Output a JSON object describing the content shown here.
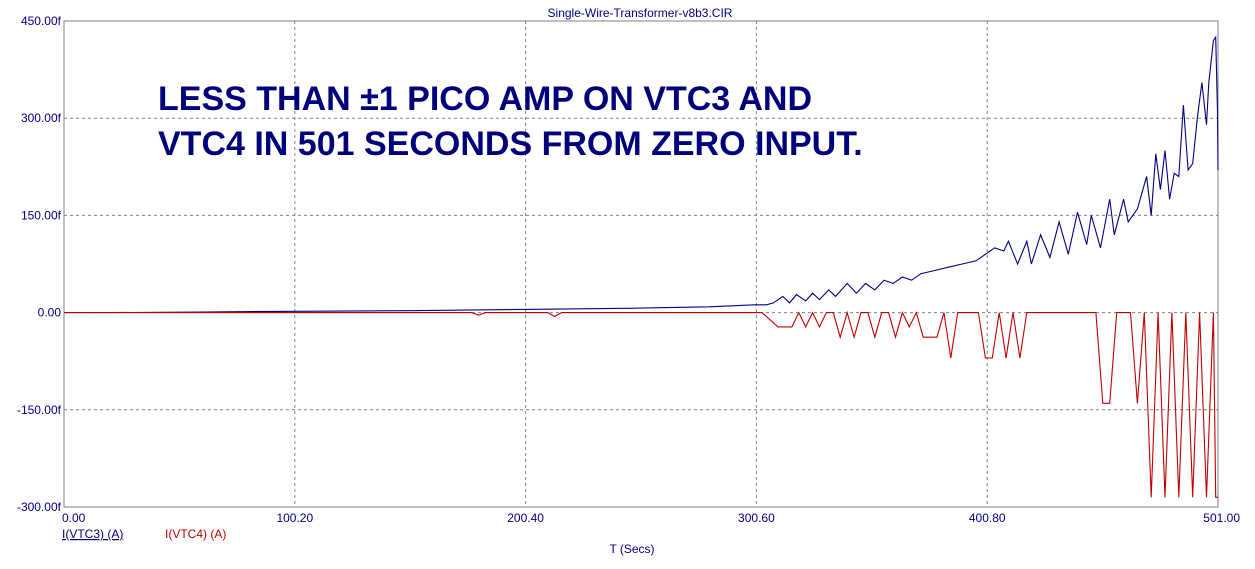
{
  "chart_data": {
    "type": "line",
    "title": "Single-Wire-Transformer-v8b3.CIR",
    "xlabel": "T (Secs)",
    "ylabel": "",
    "xlim": [
      0,
      501
    ],
    "ylim": [
      -300,
      450
    ],
    "grid": true,
    "x_ticks": [
      "0.00",
      "100.20",
      "200.40",
      "300.60",
      "400.80",
      "501.00"
    ],
    "y_ticks": [
      "450.00f",
      "300.00f",
      "150.00f",
      "0.00",
      "-150.00f",
      "-300.00f"
    ],
    "annotation": [
      "LESS THAN ±1 PICO AMP ON VTC3 AND",
      "VTC4 IN 501 SECONDS FROM ZERO INPUT."
    ],
    "colors": {
      "axis_text": "#000080",
      "grid": "#808080",
      "series1": "#000080",
      "series2": "#c00000"
    },
    "series": [
      {
        "name": "I(VTC3) (A)",
        "color": "#000080",
        "x": [
          0,
          20,
          60,
          100,
          150,
          200,
          250,
          280,
          300,
          305,
          308,
          312,
          315,
          318,
          322,
          325,
          328,
          332,
          335,
          340,
          344,
          348,
          352,
          356,
          360,
          364,
          368,
          372,
          378,
          384,
          390,
          396,
          400,
          404,
          408,
          410,
          414,
          418,
          420,
          424,
          428,
          432,
          436,
          440,
          444,
          446,
          450,
          454,
          456,
          460,
          462,
          466,
          470,
          472,
          474,
          476,
          478,
          480,
          482,
          484,
          486,
          488,
          490,
          492,
          494,
          496,
          497,
          499,
          500,
          500.8,
          501
        ],
        "y": [
          0,
          0,
          1,
          2,
          3,
          5,
          7,
          9,
          12,
          12,
          15,
          25,
          15,
          28,
          18,
          30,
          20,
          35,
          25,
          45,
          30,
          45,
          35,
          50,
          45,
          55,
          50,
          60,
          65,
          70,
          75,
          80,
          90,
          100,
          95,
          110,
          75,
          110,
          75,
          120,
          85,
          140,
          90,
          155,
          105,
          150,
          100,
          175,
          120,
          175,
          140,
          160,
          210,
          150,
          245,
          190,
          250,
          175,
          215,
          210,
          320,
          220,
          230,
          300,
          355,
          290,
          355,
          420,
          425,
          310,
          220
        ]
      },
      {
        "name": "I(VTC4) (A)",
        "color": "#c00000",
        "x": [
          0,
          150,
          177,
          180,
          183,
          210,
          213,
          216,
          300,
          303,
          310,
          313,
          316,
          319,
          322,
          325,
          328,
          331,
          334,
          337,
          340,
          343,
          346,
          349,
          352,
          355,
          358,
          361,
          364,
          367,
          370,
          373,
          376,
          379,
          382,
          385,
          388,
          391,
          394,
          397,
          400,
          403,
          406,
          409,
          412,
          415,
          418,
          421,
          424,
          427,
          430,
          433,
          436,
          439,
          442,
          445,
          448,
          451,
          454,
          457,
          460,
          463,
          466,
          469,
          472,
          475,
          478,
          481,
          484,
          487,
          490,
          493,
          496,
          499,
          500,
          501
        ],
        "y": [
          0,
          0,
          0,
          -4,
          0,
          0,
          -6,
          0,
          0,
          0,
          -22,
          -22,
          -22,
          0,
          -22,
          0,
          -22,
          0,
          0,
          -38,
          0,
          -38,
          0,
          0,
          -38,
          0,
          0,
          -38,
          0,
          -22,
          0,
          -38,
          -38,
          -38,
          0,
          -70,
          0,
          0,
          0,
          0,
          -70,
          -70,
          0,
          -70,
          0,
          -70,
          0,
          0,
          0,
          0,
          0,
          0,
          0,
          0,
          0,
          0,
          0,
          -140,
          -140,
          0,
          0,
          0,
          -140,
          0,
          -285,
          0,
          -285,
          0,
          -285,
          0,
          -285,
          0,
          -285,
          0,
          -285,
          -285
        ]
      }
    ]
  }
}
